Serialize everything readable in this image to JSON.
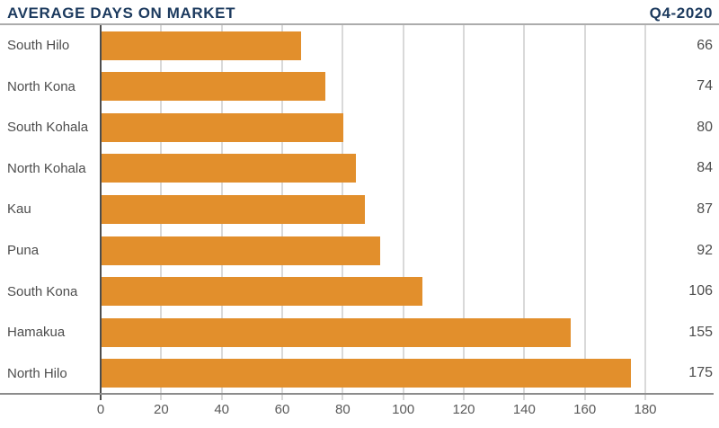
{
  "header": {
    "title": "AVERAGE DAYS ON MARKET",
    "period": "Q4-2020"
  },
  "chart_data": {
    "type": "bar",
    "orientation": "horizontal",
    "title": "AVERAGE DAYS ON MARKET",
    "subtitle": "Q4-2020",
    "categories": [
      "South Hilo",
      "North Kona",
      "South Kohala",
      "North Kohala",
      "Kau",
      "Puna",
      "South Kona",
      "Hamakua",
      "North Hilo"
    ],
    "values": [
      66,
      74,
      80,
      84,
      87,
      92,
      106,
      155,
      175
    ],
    "xlabel": "",
    "ylabel": "",
    "xlim": [
      0,
      180
    ],
    "xticks": [
      0,
      20,
      40,
      60,
      80,
      100,
      120,
      140,
      160,
      180
    ],
    "grid": true,
    "legend": "none",
    "value_label_position": "right"
  },
  "colors": {
    "title_text": "#1C3A5E",
    "bar": "#E28F2C",
    "gridline": "#D9D9D9",
    "x_axis": "#8C8C8C",
    "y_axis": "#4D4D4D",
    "category_text": "#4D4D4D",
    "value_text": "#4D4D4D",
    "tick_text": "#595959",
    "title_rule": "#ACACAC",
    "background": "#FFFFFF"
  }
}
